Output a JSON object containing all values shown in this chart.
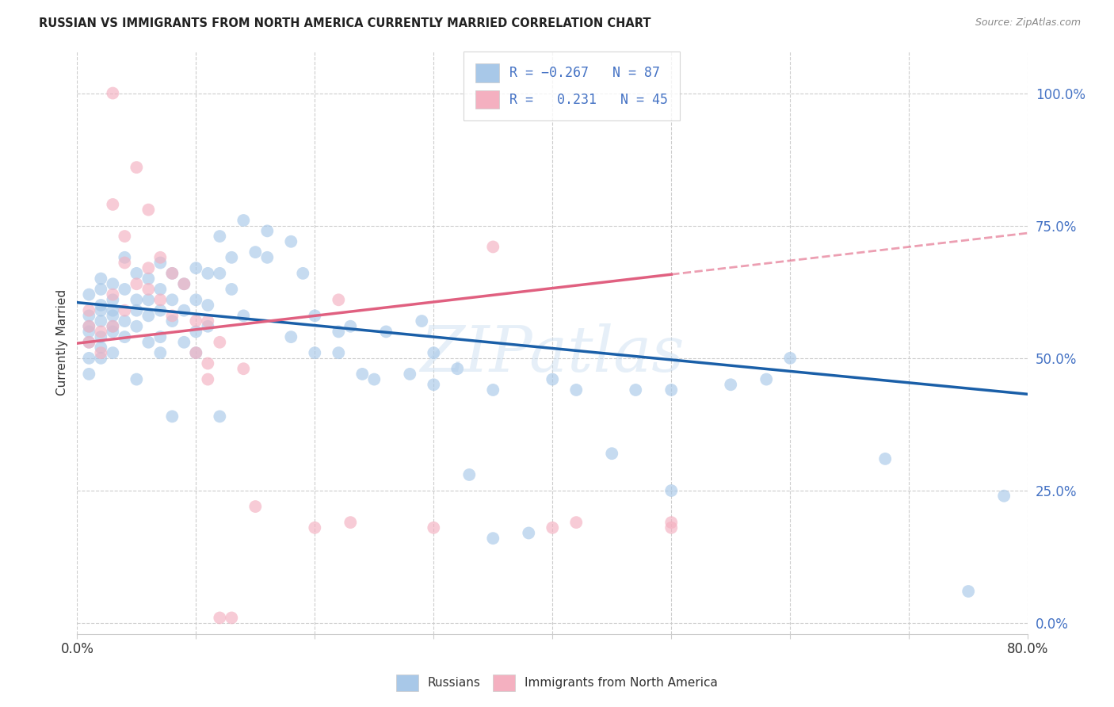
{
  "title": "RUSSIAN VS IMMIGRANTS FROM NORTH AMERICA CURRENTLY MARRIED CORRELATION CHART",
  "source": "Source: ZipAtlas.com",
  "ylabel": "Currently Married",
  "ytick_labels": [
    "0.0%",
    "25.0%",
    "50.0%",
    "75.0%",
    "100.0%"
  ],
  "ytick_values": [
    0.0,
    0.25,
    0.5,
    0.75,
    1.0
  ],
  "xlim": [
    0.0,
    0.8
  ],
  "ylim": [
    -0.02,
    1.08
  ],
  "watermark": "ZIPatlas",
  "russian_color": "#a8c8e8",
  "immigrant_color": "#f4b0c0",
  "russian_line_color": "#1a5fa8",
  "immigrant_line_color": "#e06080",
  "russian_line": {
    "x0": 0.0,
    "y0": 0.605,
    "x1": 0.8,
    "y1": 0.432
  },
  "immigrant_line_solid": {
    "x0": 0.0,
    "y0": 0.528,
    "x1": 0.5,
    "y1": 0.658
  },
  "immigrant_line_dash": {
    "x0": 0.5,
    "y0": 0.658,
    "x1": 0.8,
    "y1": 0.736
  },
  "russian_points": [
    [
      0.01,
      0.58
    ],
    [
      0.01,
      0.53
    ],
    [
      0.01,
      0.56
    ],
    [
      0.01,
      0.62
    ],
    [
      0.01,
      0.5
    ],
    [
      0.01,
      0.47
    ],
    [
      0.01,
      0.55
    ],
    [
      0.02,
      0.63
    ],
    [
      0.02,
      0.59
    ],
    [
      0.02,
      0.54
    ],
    [
      0.02,
      0.57
    ],
    [
      0.02,
      0.52
    ],
    [
      0.02,
      0.6
    ],
    [
      0.02,
      0.65
    ],
    [
      0.02,
      0.5
    ],
    [
      0.03,
      0.61
    ],
    [
      0.03,
      0.58
    ],
    [
      0.03,
      0.55
    ],
    [
      0.03,
      0.64
    ],
    [
      0.03,
      0.56
    ],
    [
      0.03,
      0.51
    ],
    [
      0.03,
      0.59
    ],
    [
      0.04,
      0.63
    ],
    [
      0.04,
      0.57
    ],
    [
      0.04,
      0.69
    ],
    [
      0.04,
      0.54
    ],
    [
      0.05,
      0.66
    ],
    [
      0.05,
      0.61
    ],
    [
      0.05,
      0.59
    ],
    [
      0.05,
      0.56
    ],
    [
      0.05,
      0.46
    ],
    [
      0.06,
      0.65
    ],
    [
      0.06,
      0.61
    ],
    [
      0.06,
      0.58
    ],
    [
      0.06,
      0.53
    ],
    [
      0.07,
      0.68
    ],
    [
      0.07,
      0.63
    ],
    [
      0.07,
      0.59
    ],
    [
      0.07,
      0.54
    ],
    [
      0.07,
      0.51
    ],
    [
      0.08,
      0.66
    ],
    [
      0.08,
      0.61
    ],
    [
      0.08,
      0.57
    ],
    [
      0.08,
      0.39
    ],
    [
      0.09,
      0.64
    ],
    [
      0.09,
      0.59
    ],
    [
      0.09,
      0.53
    ],
    [
      0.1,
      0.67
    ],
    [
      0.1,
      0.61
    ],
    [
      0.1,
      0.55
    ],
    [
      0.1,
      0.51
    ],
    [
      0.11,
      0.66
    ],
    [
      0.11,
      0.6
    ],
    [
      0.11,
      0.56
    ],
    [
      0.12,
      0.73
    ],
    [
      0.12,
      0.66
    ],
    [
      0.12,
      0.39
    ],
    [
      0.13,
      0.69
    ],
    [
      0.13,
      0.63
    ],
    [
      0.14,
      0.76
    ],
    [
      0.14,
      0.58
    ],
    [
      0.15,
      0.7
    ],
    [
      0.16,
      0.74
    ],
    [
      0.16,
      0.69
    ],
    [
      0.18,
      0.72
    ],
    [
      0.18,
      0.54
    ],
    [
      0.19,
      0.66
    ],
    [
      0.2,
      0.58
    ],
    [
      0.2,
      0.51
    ],
    [
      0.22,
      0.55
    ],
    [
      0.22,
      0.51
    ],
    [
      0.23,
      0.56
    ],
    [
      0.24,
      0.47
    ],
    [
      0.25,
      0.46
    ],
    [
      0.26,
      0.55
    ],
    [
      0.28,
      0.47
    ],
    [
      0.29,
      0.57
    ],
    [
      0.3,
      0.45
    ],
    [
      0.3,
      0.51
    ],
    [
      0.32,
      0.48
    ],
    [
      0.33,
      0.28
    ],
    [
      0.35,
      0.16
    ],
    [
      0.35,
      0.44
    ],
    [
      0.38,
      0.17
    ],
    [
      0.4,
      0.46
    ],
    [
      0.42,
      0.44
    ],
    [
      0.45,
      0.32
    ],
    [
      0.47,
      0.44
    ],
    [
      0.5,
      0.25
    ],
    [
      0.5,
      0.44
    ],
    [
      0.55,
      0.45
    ],
    [
      0.58,
      0.46
    ],
    [
      0.6,
      0.5
    ],
    [
      0.68,
      0.31
    ],
    [
      0.75,
      0.06
    ],
    [
      0.78,
      0.24
    ]
  ],
  "immigrant_points": [
    [
      0.01,
      0.59
    ],
    [
      0.01,
      0.56
    ],
    [
      0.01,
      0.53
    ],
    [
      0.02,
      0.55
    ],
    [
      0.02,
      0.51
    ],
    [
      0.03,
      0.62
    ],
    [
      0.03,
      0.79
    ],
    [
      0.03,
      0.56
    ],
    [
      0.03,
      1.0
    ],
    [
      0.04,
      0.68
    ],
    [
      0.04,
      0.59
    ],
    [
      0.04,
      0.73
    ],
    [
      0.05,
      0.64
    ],
    [
      0.05,
      0.86
    ],
    [
      0.06,
      0.67
    ],
    [
      0.06,
      0.78
    ],
    [
      0.06,
      0.63
    ],
    [
      0.07,
      0.69
    ],
    [
      0.07,
      0.61
    ],
    [
      0.08,
      0.66
    ],
    [
      0.08,
      0.58
    ],
    [
      0.09,
      0.64
    ],
    [
      0.1,
      0.57
    ],
    [
      0.1,
      0.51
    ],
    [
      0.11,
      0.49
    ],
    [
      0.11,
      0.46
    ],
    [
      0.11,
      0.57
    ],
    [
      0.12,
      0.53
    ],
    [
      0.12,
      0.01
    ],
    [
      0.13,
      0.01
    ],
    [
      0.14,
      0.48
    ],
    [
      0.15,
      0.22
    ],
    [
      0.2,
      0.18
    ],
    [
      0.22,
      0.61
    ],
    [
      0.23,
      0.19
    ],
    [
      0.3,
      0.18
    ],
    [
      0.35,
      0.71
    ],
    [
      0.4,
      0.18
    ],
    [
      0.42,
      0.19
    ],
    [
      0.5,
      0.18
    ],
    [
      0.5,
      0.19
    ]
  ]
}
